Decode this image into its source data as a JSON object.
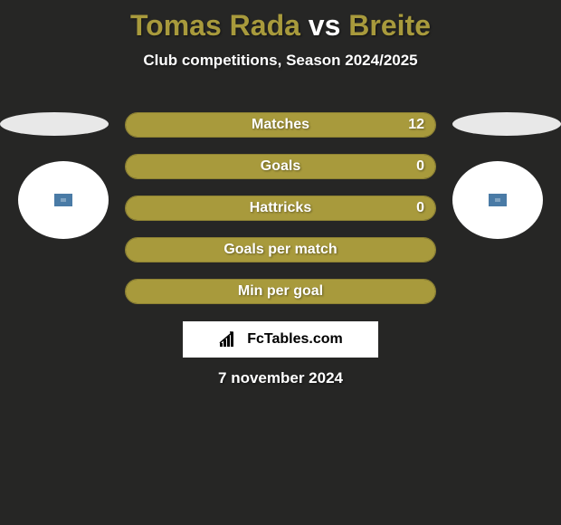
{
  "title": {
    "player1": "Tomas Rada",
    "vs": "vs",
    "player2": "Breite",
    "player1_color": "#a89a3c",
    "player2_color": "#a89a3c",
    "vs_color": "#ffffff",
    "fontsize": 32
  },
  "subtitle": "Club competitions, Season 2024/2025",
  "colors": {
    "background": "#262625",
    "bar_fill": "#a89a3c",
    "bar_border": "#8e8233",
    "text": "#ffffff",
    "ellipse": "#e8e8e8",
    "circle": "#ffffff",
    "badge": "#4a7ba6"
  },
  "bars": [
    {
      "label": "Matches",
      "value_right": "12",
      "fill_percent": 100
    },
    {
      "label": "Goals",
      "value_right": "0",
      "fill_percent": 100
    },
    {
      "label": "Hattricks",
      "value_right": "0",
      "fill_percent": 100
    },
    {
      "label": "Goals per match",
      "value_right": "",
      "fill_percent": 100
    },
    {
      "label": "Min per goal",
      "value_right": "",
      "fill_percent": 100
    }
  ],
  "attribution": "FcTables.com",
  "date": "7 november 2024"
}
